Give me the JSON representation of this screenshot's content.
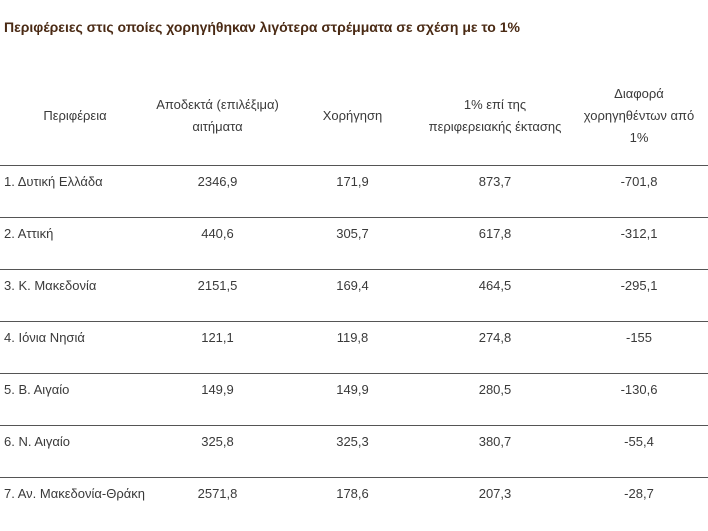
{
  "title": "Περιφέρειες στις οποίες χορηγήθηκαν λιγότερα στρέμματα σε σχέση με το 1%",
  "table": {
    "headers": [
      "Περιφέρεια",
      "Αποδεκτά (επιλέξιμα) αιτήματα",
      "Χορήγηση",
      "1% επί της περιφερειακής έκτασης",
      "Διαφορά χορηγηθέντων από 1%"
    ],
    "rows": [
      [
        "1. Δυτική Ελλάδα",
        "2346,9",
        "171,9",
        "873,7",
        "-701,8"
      ],
      [
        "2. Αττική",
        "440,6",
        "305,7",
        "617,8",
        "-312,1"
      ],
      [
        "3. Κ. Μακεδονία",
        "2151,5",
        "169,4",
        "464,5",
        "-295,1"
      ],
      [
        "4. Ιόνια Νησιά",
        "121,1",
        "119,8",
        "274,8",
        "-155"
      ],
      [
        "5. Β. Αιγαίο",
        "149,9",
        "149,9",
        "280,5",
        "-130,6"
      ],
      [
        "6. Ν. Αιγαίο",
        "325,8",
        "325,3",
        "380,7",
        "-55,4"
      ],
      [
        "7. Αν. Μακεδονία-Θράκη",
        "2571,8",
        "178,6",
        "207,3",
        "-28,7"
      ]
    ]
  }
}
